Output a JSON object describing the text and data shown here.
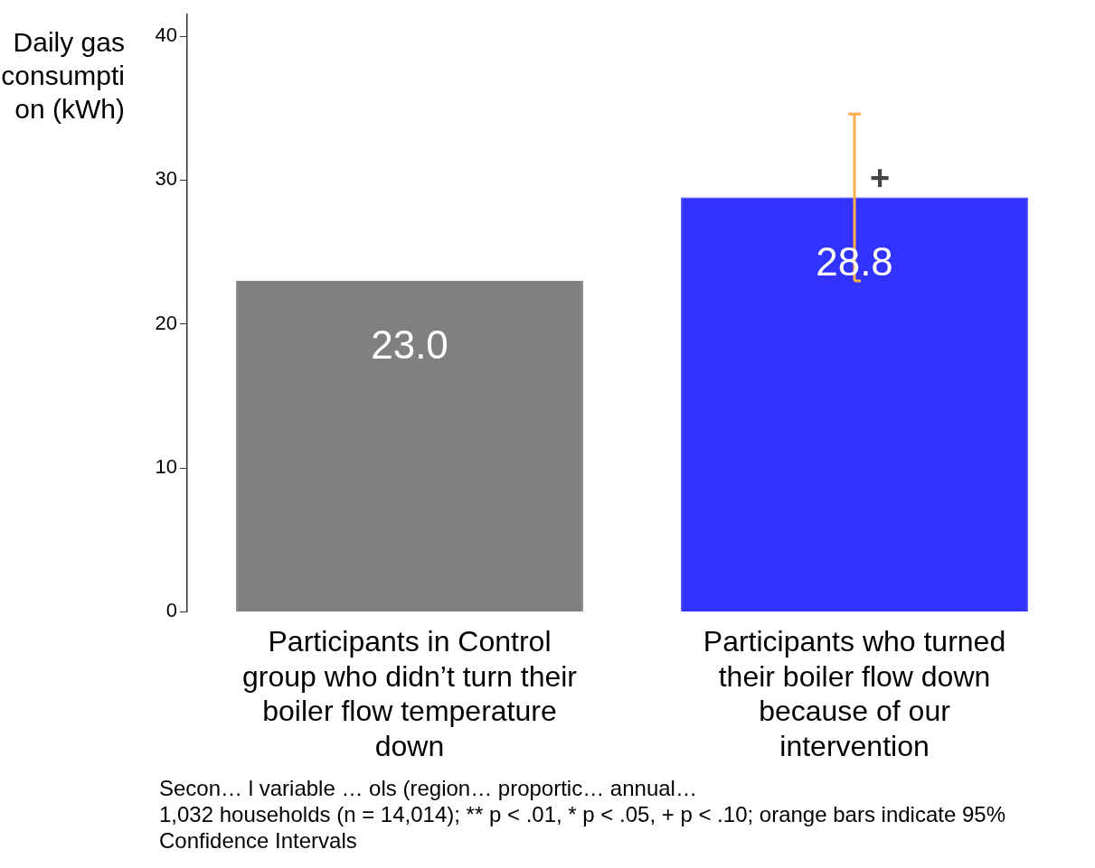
{
  "chart_data": {
    "type": "bar",
    "ylabel": "Daily gas consumption (kWh)",
    "categories": [
      "Participants in Control group who didn’t turn their boiler flow temperature down",
      "Participants who turned their boiler flow down because of our intervention"
    ],
    "values": [
      23.0,
      28.8
    ],
    "colors": [
      "#808080",
      "#3333ff"
    ],
    "errors": [
      null,
      [
        23.0,
        34.6
      ]
    ],
    "ylim": [
      0,
      41.5
    ],
    "yticks": [
      0,
      10,
      20,
      30,
      40
    ],
    "grid": false,
    "legend": false,
    "value_labels": [
      "23.0",
      "28.8"
    ],
    "annotations": [
      {
        "text": "+",
        "x": "Participants who turned their boiler flow down because of our intervention",
        "y": 30
      },
      "Secon… l variable … ols (region… proportic… annual…",
      "1,032 households (n = 14,014); ** p < .01, * p < .05, + p < .10; orange bars indicate 95% Confidence Intervals"
    ]
  }
}
